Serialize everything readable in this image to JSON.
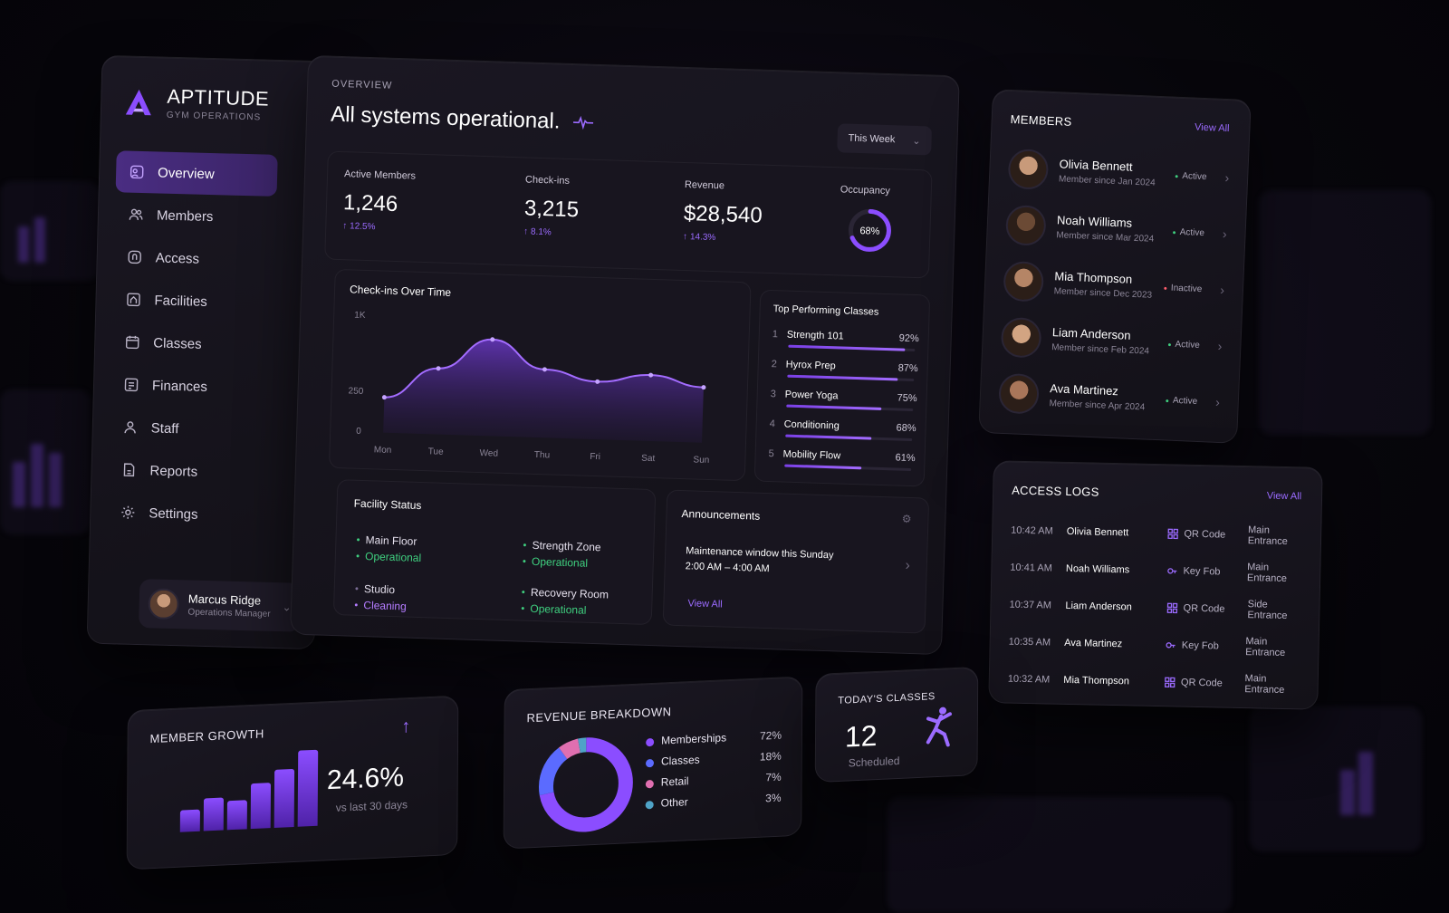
{
  "brand": {
    "name": "APTITUDE",
    "subtitle": "GYM OPERATIONS"
  },
  "sidebar": {
    "items": [
      {
        "label": "Overview",
        "icon": "overview-icon",
        "active": true
      },
      {
        "label": "Members",
        "icon": "members-icon"
      },
      {
        "label": "Access",
        "icon": "access-icon"
      },
      {
        "label": "Facilities",
        "icon": "facilities-icon"
      },
      {
        "label": "Classes",
        "icon": "classes-icon"
      },
      {
        "label": "Finances",
        "icon": "finances-icon"
      },
      {
        "label": "Staff",
        "icon": "staff-icon"
      },
      {
        "label": "Reports",
        "icon": "reports-icon"
      },
      {
        "label": "Settings",
        "icon": "gear-icon"
      }
    ],
    "user": {
      "name": "Marcus Ridge",
      "role": "Operations Manager"
    }
  },
  "overview": {
    "label": "OVERVIEW",
    "headline": "All systems operational.",
    "period": "This Week",
    "stats": [
      {
        "label": "Active Members",
        "value": "1,246",
        "delta": "↑ 12.5%"
      },
      {
        "label": "Check-ins",
        "value": "3,215",
        "delta": "↑ 8.1%"
      },
      {
        "label": "Revenue",
        "value": "$28,540",
        "delta": "↑ 14.3%"
      }
    ],
    "occupancy": {
      "label": "Occupancy",
      "value": "68%",
      "fraction": 0.68
    }
  },
  "checkins_chart": {
    "title": "Check-ins Over Time",
    "y_ticks": [
      "1K",
      "250",
      "0"
    ],
    "days": [
      "Mon",
      "Tue",
      "Wed",
      "Thu",
      "Fri",
      "Sat",
      "Sun"
    ]
  },
  "chart_data": {
    "type": "area",
    "title": "Check-ins Over Time",
    "categories": [
      "Mon",
      "Tue",
      "Wed",
      "Thu",
      "Fri",
      "Sat",
      "Sun"
    ],
    "values": [
      300,
      560,
      820,
      580,
      490,
      560,
      470
    ],
    "ylim": [
      0,
      1000
    ],
    "grid": false
  },
  "top_classes": {
    "title": "Top Performing Classes",
    "items": [
      {
        "rank": "1",
        "name": "Strength 101",
        "pct": "92%",
        "value": 0.92
      },
      {
        "rank": "2",
        "name": "Hyrox Prep",
        "pct": "87%",
        "value": 0.87
      },
      {
        "rank": "3",
        "name": "Power Yoga",
        "pct": "75%",
        "value": 0.75
      },
      {
        "rank": "4",
        "name": "Conditioning",
        "pct": "68%",
        "value": 0.68
      },
      {
        "rank": "5",
        "name": "Mobility Flow",
        "pct": "61%",
        "value": 0.61
      }
    ]
  },
  "facility": {
    "title": "Facility Status",
    "items": [
      {
        "name": "Main Floor",
        "status": "Operational"
      },
      {
        "name": "Strength Zone",
        "status": "Operational"
      },
      {
        "name": "Studio",
        "status": "Cleaning"
      },
      {
        "name": "Recovery Room",
        "status": "Operational"
      }
    ]
  },
  "announcements": {
    "title": "Announcements",
    "text": "Maintenance window this Sunday",
    "time": "2:00 AM – 4:00 AM",
    "link": "View All"
  },
  "members": {
    "title": "MEMBERS",
    "view_all": "View All",
    "items": [
      {
        "name": "Olivia Bennett",
        "since": "Member since Jan 2024",
        "status": "Active"
      },
      {
        "name": "Noah Williams",
        "since": "Member since Mar 2024",
        "status": "Active"
      },
      {
        "name": "Mia Thompson",
        "since": "Member since Dec 2023",
        "status": "Inactive"
      },
      {
        "name": "Liam Anderson",
        "since": "Member since Feb 2024",
        "status": "Active"
      },
      {
        "name": "Ava Martinez",
        "since": "Member since Apr 2024",
        "status": "Active"
      }
    ]
  },
  "access_logs": {
    "title": "ACCESS LOGS",
    "view_all": "View All",
    "rows": [
      {
        "time": "10:42 AM",
        "name": "Olivia Bennett",
        "method": "QR Code",
        "location": "Main Entrance"
      },
      {
        "time": "10:41 AM",
        "name": "Noah Williams",
        "method": "Key Fob",
        "location": "Main Entrance"
      },
      {
        "time": "10:37 AM",
        "name": "Liam Anderson",
        "method": "QR Code",
        "location": "Side Entrance"
      },
      {
        "time": "10:35 AM",
        "name": "Ava Martinez",
        "method": "Key Fob",
        "location": "Main Entrance"
      },
      {
        "time": "10:32 AM",
        "name": "Mia Thompson",
        "method": "QR Code",
        "location": "Main Entrance"
      }
    ]
  },
  "growth": {
    "title": "MEMBER GROWTH",
    "value": "24.6%",
    "subtitle": "vs last 30 days"
  },
  "revenue_breakdown": {
    "title": "REVENUE BREAKDOWN",
    "items": [
      {
        "label": "Memberships",
        "pct": "72%",
        "value": 72,
        "color": "#8b4dff"
      },
      {
        "label": "Classes",
        "pct": "18%",
        "value": 18,
        "color": "#5b6bff"
      },
      {
        "label": "Retail",
        "pct": "7%",
        "value": 7,
        "color": "#e06fb0"
      },
      {
        "label": "Other",
        "pct": "3%",
        "value": 3,
        "color": "#4fa3c7"
      }
    ]
  },
  "today_classes": {
    "title": "TODAY'S CLASSES",
    "value": "12",
    "subtitle": "Scheduled"
  },
  "colors": {
    "accent": "#8b4dff",
    "success": "#3fcf7f",
    "danger": "#ff5e6c",
    "background": "#07060b"
  }
}
